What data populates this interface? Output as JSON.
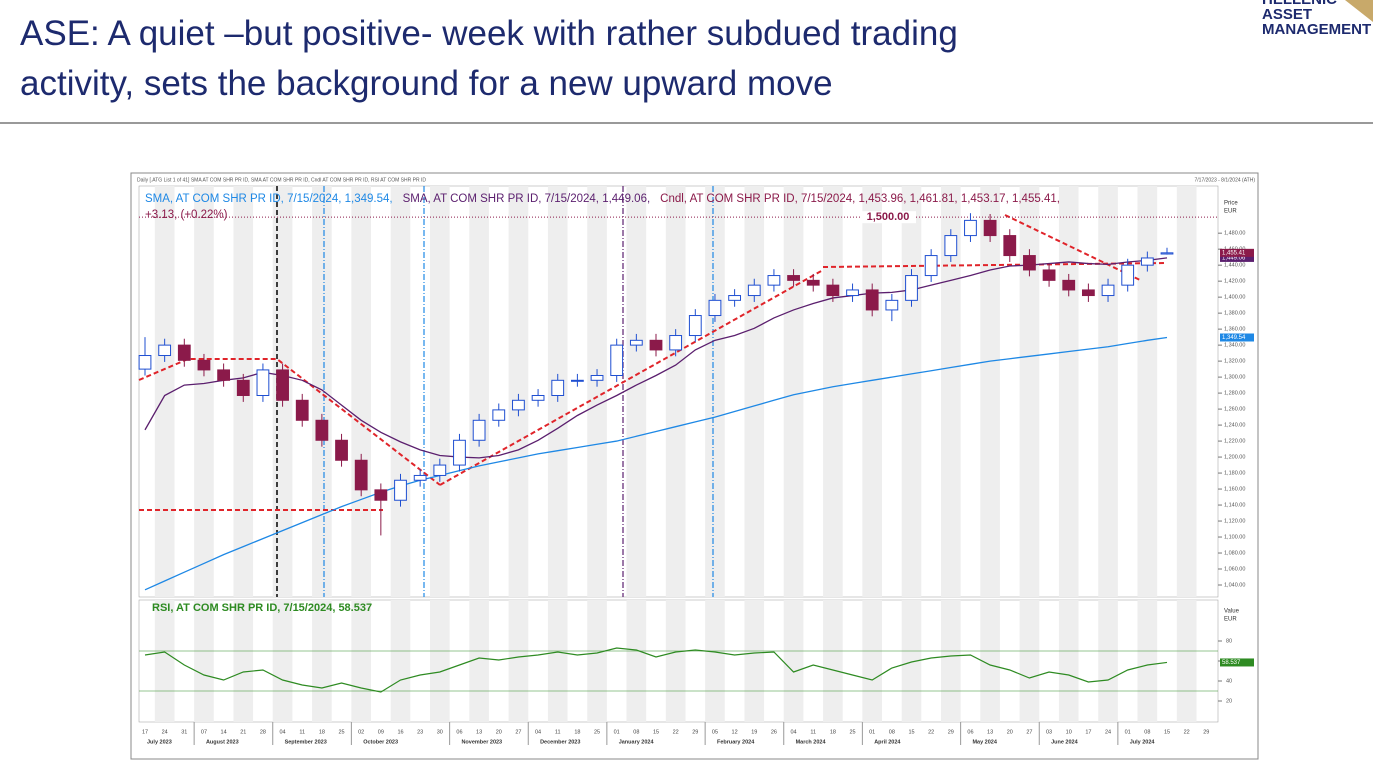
{
  "header": {
    "title_lines": [
      "ASE: A quiet –but positive- week with rather subdued trading",
      "activity, sets the background for a new upward move"
    ],
    "logo": [
      "HELLENIC",
      "ASSET",
      "MANAGEMENT"
    ]
  },
  "toolbar": {
    "left": "Daily [.ATG List 1 of 41] SMA AT COM SHR PR ID, SMA AT COM SHR PR ID, Cndl AT COM SHR PR ID, RSI AT COM SHR PR ID",
    "right": "7/17/2023 - 8/1/2024 (ATH)"
  },
  "chart_data": [
    {
      "type": "candlestick",
      "axis_title": [
        "Price",
        "EUR"
      ],
      "categories": [
        "17",
        "24",
        "31",
        "07",
        "14",
        "21",
        "28",
        "04",
        "11",
        "18",
        "25",
        "02",
        "09",
        "16",
        "23",
        "30",
        "06",
        "13",
        "20",
        "27",
        "04",
        "11",
        "18",
        "25",
        "01",
        "08",
        "15",
        "22",
        "29",
        "05",
        "12",
        "19",
        "26",
        "04",
        "11",
        "18",
        "25",
        "01",
        "08",
        "15",
        "22",
        "29",
        "06",
        "13",
        "20",
        "27",
        "03",
        "10",
        "17",
        "24",
        "01",
        "08",
        "15",
        "22",
        "29"
      ],
      "months": [
        "July 2023",
        "August 2023",
        "September 2023",
        "October 2023",
        "November 2023",
        "December 2023",
        "January 2024",
        "February 2024",
        "March 2024",
        "April 2024",
        "May 2024",
        "June 2024",
        "July 2024"
      ],
      "ylim": [
        1025,
        1539
      ],
      "yticks": [
        {
          "value": 1040,
          "label": "1,040.00"
        },
        {
          "value": 1060,
          "label": "1,060.00"
        },
        {
          "value": 1080,
          "label": "1,080.00"
        },
        {
          "value": 1100,
          "label": "1,100.00"
        },
        {
          "value": 1120,
          "label": "1,120.00"
        },
        {
          "value": 1140,
          "label": "1,140.00"
        },
        {
          "value": 1160,
          "label": "1,160.00"
        },
        {
          "value": 1180,
          "label": "1,180.00"
        },
        {
          "value": 1200,
          "label": "1,200.00"
        },
        {
          "value": 1220,
          "label": "1,220.00"
        },
        {
          "value": 1240,
          "label": "1,240.00"
        },
        {
          "value": 1260,
          "label": "1,260.00"
        },
        {
          "value": 1280,
          "label": "1,280.00"
        },
        {
          "value": 1300,
          "label": "1,300.00"
        },
        {
          "value": 1320,
          "label": "1,320.00"
        },
        {
          "value": 1340,
          "label": "1,340.00"
        },
        {
          "value": 1360,
          "label": "1,360.00"
        },
        {
          "value": 1380,
          "label": "1,380.00"
        },
        {
          "value": 1400,
          "label": "1,400.00"
        },
        {
          "value": 1420,
          "label": "1,420.00"
        },
        {
          "value": 1440,
          "label": "1,440.00"
        },
        {
          "value": 1460,
          "label": "1,460.00"
        },
        {
          "value": 1480,
          "label": "1,480.00"
        }
      ],
      "hline": {
        "value": 1500,
        "label": "1,500.00",
        "color": "#8b1a4a"
      },
      "series": [
        {
          "name": "SMA, AT COM SHR PR ID, 7/15/2024, 1,349.54,",
          "color": "#1e88e5",
          "last_label": "1,349.54",
          "values": [
            1034,
            1045,
            1056,
            1067,
            1078,
            1088,
            1098,
            1108,
            1118,
            1128,
            1138,
            1147,
            1156,
            1164,
            1171,
            1177,
            1183,
            1189,
            1194,
            1199,
            1204,
            1208,
            1212,
            1216,
            1220,
            1226,
            1232,
            1238,
            1244,
            1250,
            1257,
            1264,
            1271,
            1278,
            1283,
            1288,
            1292,
            1296,
            1300,
            1304,
            1308,
            1312,
            1316,
            1320,
            1323,
            1326,
            1329,
            1332,
            1335,
            1338,
            1342,
            1346,
            1349.54,
            null,
            null
          ]
        },
        {
          "name": "SMA, AT COM SHR PR ID, 7/15/2024, 1,449.06,",
          "color": "#5b1f6e",
          "last_label": "1,449.06",
          "values": [
            1234,
            1277,
            1290,
            1292,
            1296,
            1299,
            1306,
            1302,
            1296,
            1284,
            1265,
            1246,
            1231,
            1219,
            1209,
            1202,
            1200,
            1199,
            1202,
            1209,
            1221,
            1236,
            1252,
            1265,
            1277,
            1290,
            1302,
            1315,
            1334,
            1346,
            1352,
            1361,
            1374,
            1384,
            1392,
            1399,
            1402,
            1405,
            1406,
            1409,
            1415,
            1421,
            1427,
            1434,
            1439,
            1440,
            1442,
            1444,
            1442,
            1441,
            1444,
            1446,
            1449.06,
            null,
            null
          ]
        },
        {
          "name": "Cndl, AT COM SHR PR ID, 7/15/2024, 1,453.96, 1,461.81, 1,453.17, 1,455.41,",
          "change": "+3.13, (+0.22%)",
          "color": "#8b1a4a",
          "up_color": "#1f4fd1",
          "last_label": "1,455.41",
          "open": [
            1310,
            1327,
            1340,
            1321,
            1309,
            1296,
            1277,
            1309,
            1271,
            1246,
            1221,
            1196,
            1159,
            1146,
            1171,
            1177,
            1190,
            1221,
            1246,
            1259,
            1271,
            1277,
            1296,
            1296,
            1302,
            1340,
            1346,
            1334,
            1352,
            1377,
            1396,
            1402,
            1415,
            1427,
            1421,
            1415,
            1402,
            1409,
            1384,
            1396,
            1427,
            1452,
            1477,
            1496,
            1477,
            1452,
            1434,
            1421,
            1409,
            1402,
            1415,
            1440,
            1453.96,
            null,
            null
          ],
          "high": [
            1350,
            1348,
            1348,
            1329,
            1317,
            1304,
            1317,
            1317,
            1279,
            1254,
            1229,
            1204,
            1167,
            1179,
            1185,
            1198,
            1229,
            1254,
            1267,
            1279,
            1285,
            1304,
            1304,
            1310,
            1348,
            1354,
            1354,
            1360,
            1385,
            1404,
            1410,
            1423,
            1435,
            1435,
            1429,
            1423,
            1417,
            1417,
            1404,
            1435,
            1460,
            1485,
            1505,
            1504,
            1485,
            1460,
            1442,
            1429,
            1417,
            1423,
            1448,
            1457,
            1461.81,
            null,
            null
          ],
          "low": [
            1302,
            1319,
            1313,
            1301,
            1288,
            1269,
            1269,
            1263,
            1238,
            1213,
            1188,
            1151,
            1102,
            1138,
            1163,
            1169,
            1182,
            1213,
            1238,
            1251,
            1263,
            1269,
            1288,
            1288,
            1294,
            1332,
            1326,
            1326,
            1344,
            1369,
            1388,
            1394,
            1407,
            1413,
            1407,
            1394,
            1394,
            1376,
            1370,
            1388,
            1419,
            1444,
            1469,
            1469,
            1444,
            1426,
            1413,
            1401,
            1394,
            1394,
            1407,
            1432,
            1453.17,
            null,
            null
          ],
          "values": [
            1327,
            1340,
            1321,
            1309,
            1296,
            1277,
            1309,
            1271,
            1246,
            1221,
            1196,
            1159,
            1146,
            1171,
            1177,
            1190,
            1221,
            1246,
            1259,
            1271,
            1277,
            1296,
            1296,
            1302,
            1340,
            1346,
            1334,
            1352,
            1377,
            1396,
            1402,
            1415,
            1427,
            1421,
            1415,
            1402,
            1409,
            1384,
            1396,
            1427,
            1452,
            1477,
            1496,
            1477,
            1452,
            1434,
            1421,
            1409,
            1402,
            1415,
            1440,
            1449,
            1455.41,
            null,
            null
          ]
        }
      ]
    },
    {
      "type": "line",
      "axis_title": [
        "Value",
        "EUR"
      ],
      "ylim": [
        0,
        120
      ],
      "yticks": [
        20,
        40,
        60,
        80
      ],
      "bands": [
        30,
        70
      ],
      "series": [
        {
          "name": "RSI, AT COM SHR PR ID, 7/15/2024, 58.537",
          "color": "#2e8b22",
          "values": [
            66,
            69,
            56,
            46,
            41,
            49,
            51,
            41,
            36,
            33,
            38,
            33,
            29,
            41,
            46,
            49,
            56,
            63,
            61,
            64,
            66,
            69,
            66,
            68,
            73,
            71,
            64,
            69,
            71,
            69,
            66,
            68,
            69,
            49,
            56,
            51,
            46,
            41,
            53,
            59,
            63,
            65,
            66,
            56,
            51,
            43,
            49,
            46,
            39,
            41,
            51,
            56,
            58.537,
            null,
            null
          ]
        }
      ]
    }
  ]
}
